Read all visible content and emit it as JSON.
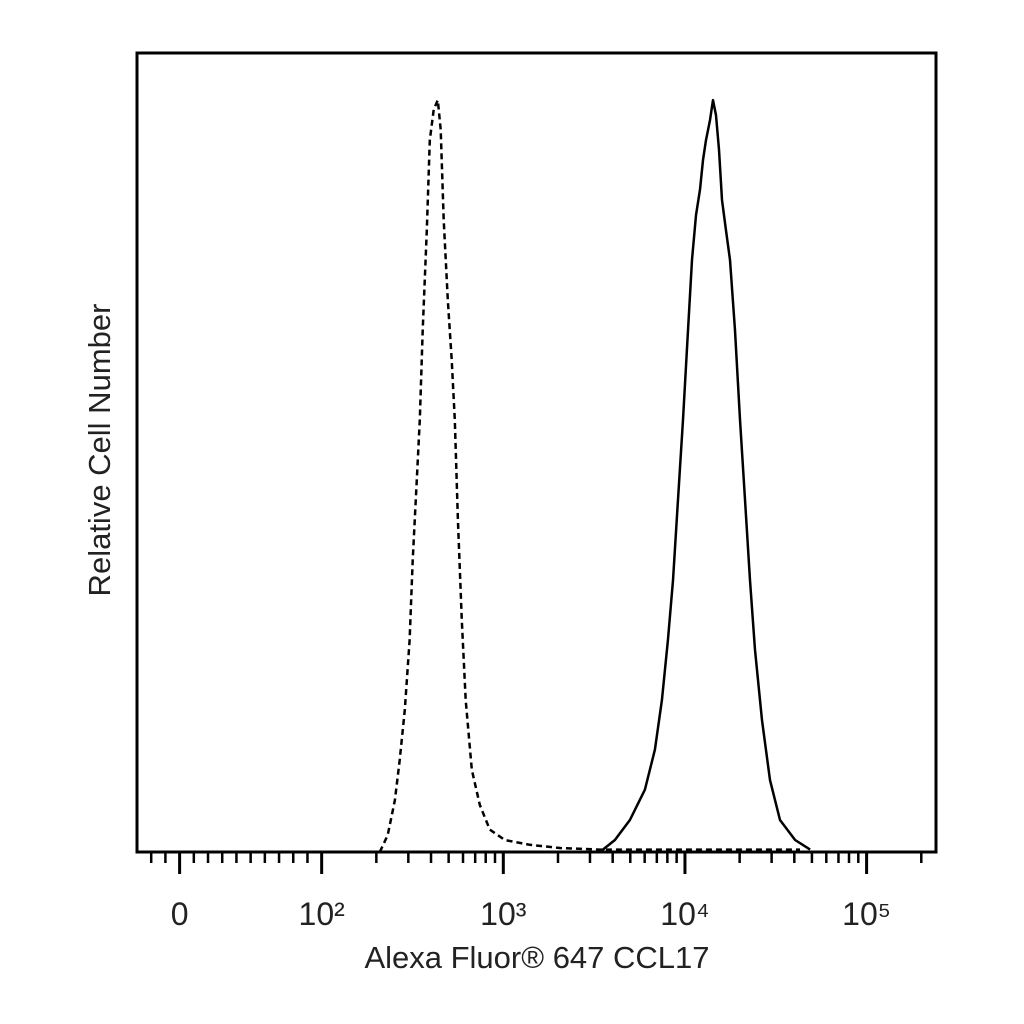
{
  "chart_data": {
    "type": "line",
    "x_label": "Alexa Fluor® 647 CCL17",
    "y_label": "Relative Cell Number",
    "xscale": "biexponential",
    "xlim": [
      -30,
      241000
    ],
    "ylim": [
      0,
      100
    ],
    "xticks": [
      {
        "value": 0,
        "label": "0"
      },
      {
        "value": 100,
        "label": "10²"
      },
      {
        "value": 1000,
        "label": "10³"
      },
      {
        "value": 10000,
        "label": "10⁴"
      },
      {
        "value": 100000,
        "label": "10⁵"
      }
    ],
    "xminorticks": [
      -20,
      -10,
      10,
      20,
      30,
      40,
      50,
      60,
      70,
      80,
      90,
      200,
      300,
      400,
      500,
      600,
      700,
      800,
      900,
      2000,
      3000,
      4000,
      5000,
      6000,
      7000,
      8000,
      9000,
      20000,
      30000,
      40000,
      50000,
      60000,
      70000,
      80000,
      90000,
      200000
    ],
    "series": [
      {
        "color": "#000000",
        "line_style": "dashed",
        "x": [
          209,
          231,
          253,
          269,
          287,
          305,
          317,
          334,
          347,
          360,
          379,
          394,
          414,
          436,
          452,
          470,
          495,
          520,
          541,
          562,
          591,
          621,
          671,
          742,
          843,
          1019,
          1400,
          2048,
          3400,
          12100,
          43000
        ],
        "values": [
          0,
          2.1,
          6.5,
          11.5,
          17.8,
          26.5,
          36.5,
          46.6,
          54.1,
          65.3,
          77.8,
          89.1,
          92.9,
          94.1,
          90.4,
          79.1,
          69.1,
          61.6,
          54.1,
          41.6,
          29.0,
          19.0,
          10.3,
          5.9,
          2.8,
          1.5,
          0.9,
          0.5,
          0.3,
          0.3,
          0.3
        ]
      },
      {
        "color": "#000000",
        "line_style": "solid",
        "x": [
          3401,
          4115,
          4977,
          6020,
          6834,
          7470,
          8060,
          8588,
          9151,
          9750,
          10388,
          10927,
          11497,
          12093,
          12564,
          13051,
          13729,
          14263,
          14819,
          15394,
          15993,
          16825,
          17700,
          18859,
          20091,
          21410,
          22810,
          24302,
          26560,
          29398,
          33376,
          40380,
          48846
        ],
        "values": [
          0,
          1.5,
          4.0,
          7.8,
          12.8,
          19.0,
          26.5,
          34.0,
          44.1,
          54.1,
          65.3,
          74.1,
          79.7,
          82.9,
          86.6,
          89.1,
          91.6,
          94.1,
          92.2,
          87.9,
          81.6,
          77.8,
          74.1,
          65.3,
          54.1,
          44.1,
          34.0,
          25.3,
          16.5,
          9.0,
          4.0,
          1.5,
          0.3
        ]
      }
    ]
  }
}
